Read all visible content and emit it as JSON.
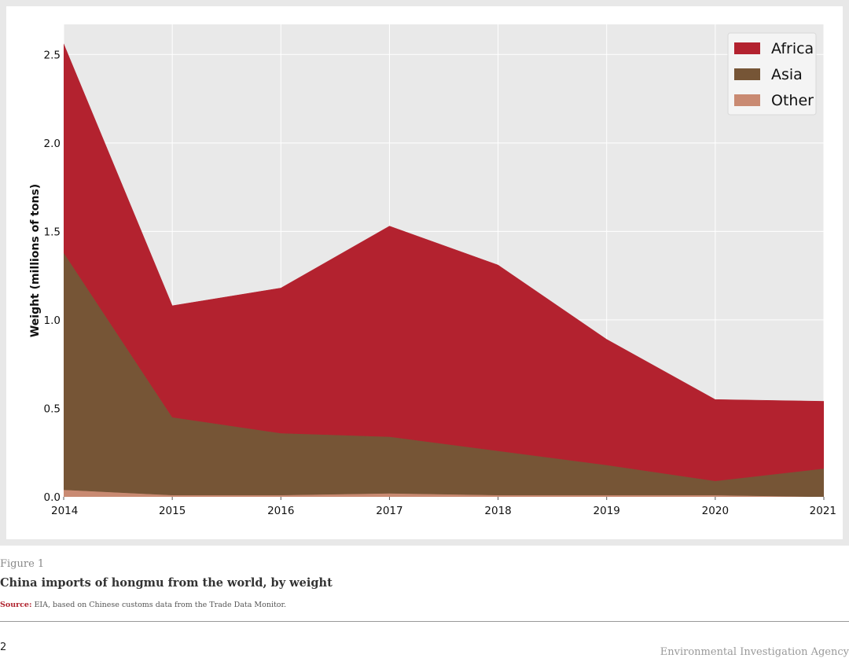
{
  "chart_data": {
    "type": "area",
    "stacked": true,
    "x": [
      2014,
      2015,
      2016,
      2017,
      2018,
      2019,
      2020,
      2021
    ],
    "series": [
      {
        "name": "Other",
        "color": "#c98a72",
        "values": [
          0.04,
          0.01,
          0.01,
          0.02,
          0.01,
          0.01,
          0.01,
          0.0
        ]
      },
      {
        "name": "Asia",
        "color": "#765536",
        "values": [
          1.34,
          0.44,
          0.35,
          0.32,
          0.25,
          0.17,
          0.08,
          0.16
        ]
      },
      {
        "name": "Africa",
        "color": "#b3222f",
        "values": [
          1.18,
          0.63,
          0.82,
          1.19,
          1.05,
          0.71,
          0.46,
          0.38
        ]
      }
    ],
    "ylabel": "Weight (millions of tons)",
    "xlabel": "",
    "ylim": [
      0,
      2.67
    ],
    "yticks": [
      "0.0",
      "0.5",
      "1.0",
      "1.5",
      "2.0",
      "2.5"
    ],
    "xticks": [
      "2014",
      "2015",
      "2016",
      "2017",
      "2018",
      "2019",
      "2020",
      "2021"
    ],
    "grid": true,
    "background": "#e9e9e9",
    "legend": [
      "Africa",
      "Asia",
      "Other"
    ],
    "legend_position": "top-right"
  },
  "caption": {
    "figure_label": "Figure 1",
    "title": "China imports of hongmu from the world, by weight",
    "source_prefix": "Source:",
    "source_text": " EIA, based on Chinese customs data from the Trade Data Monitor."
  },
  "footer": {
    "page_number": "2",
    "organization": "Environmental Investigation Agency"
  }
}
